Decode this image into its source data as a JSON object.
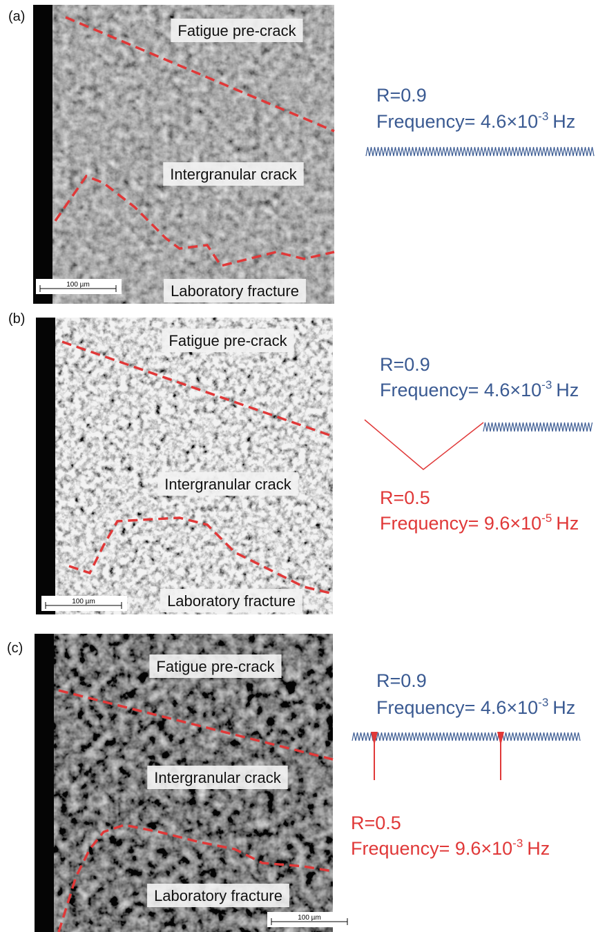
{
  "panels": [
    {
      "label": "(a)",
      "image_labels": [
        "Fatigue pre-crack",
        "Intergranular crack",
        "Laboratory fracture"
      ],
      "scale_bar": "100 µm",
      "loading": [
        {
          "ratio": "R=0.9",
          "frequency": {
            "text": "Frequency= 4.6×10",
            "exponent": "-3",
            "unit": "Hz"
          }
        }
      ]
    },
    {
      "label": "(b)",
      "image_labels": [
        "Fatigue pre-crack",
        "Intergranular crack",
        "Laboratory fracture"
      ],
      "scale_bar": "100 µm",
      "loading": [
        {
          "ratio": "R=0.9",
          "frequency": {
            "text": "Frequency= 4.6×10",
            "exponent": "-3",
            "unit": "Hz"
          }
        },
        {
          "ratio": "R=0.5",
          "frequency": {
            "text": "Frequency= 9.6×10",
            "exponent": "-5",
            "unit": "Hz"
          }
        }
      ]
    },
    {
      "label": "(c)",
      "image_labels": [
        "Fatigue pre-crack",
        "Intergranular crack",
        "Laboratory fracture"
      ],
      "scale_bar": "100 µm",
      "loading": [
        {
          "ratio": "R=0.9",
          "frequency": {
            "text": "Frequency= 4.6×10",
            "exponent": "-3",
            "unit": "Hz"
          }
        },
        {
          "ratio": "R=0.5",
          "frequency": {
            "text": "Frequency= 9.6×10",
            "exponent": "-3",
            "unit": "Hz"
          }
        }
      ]
    }
  ]
}
